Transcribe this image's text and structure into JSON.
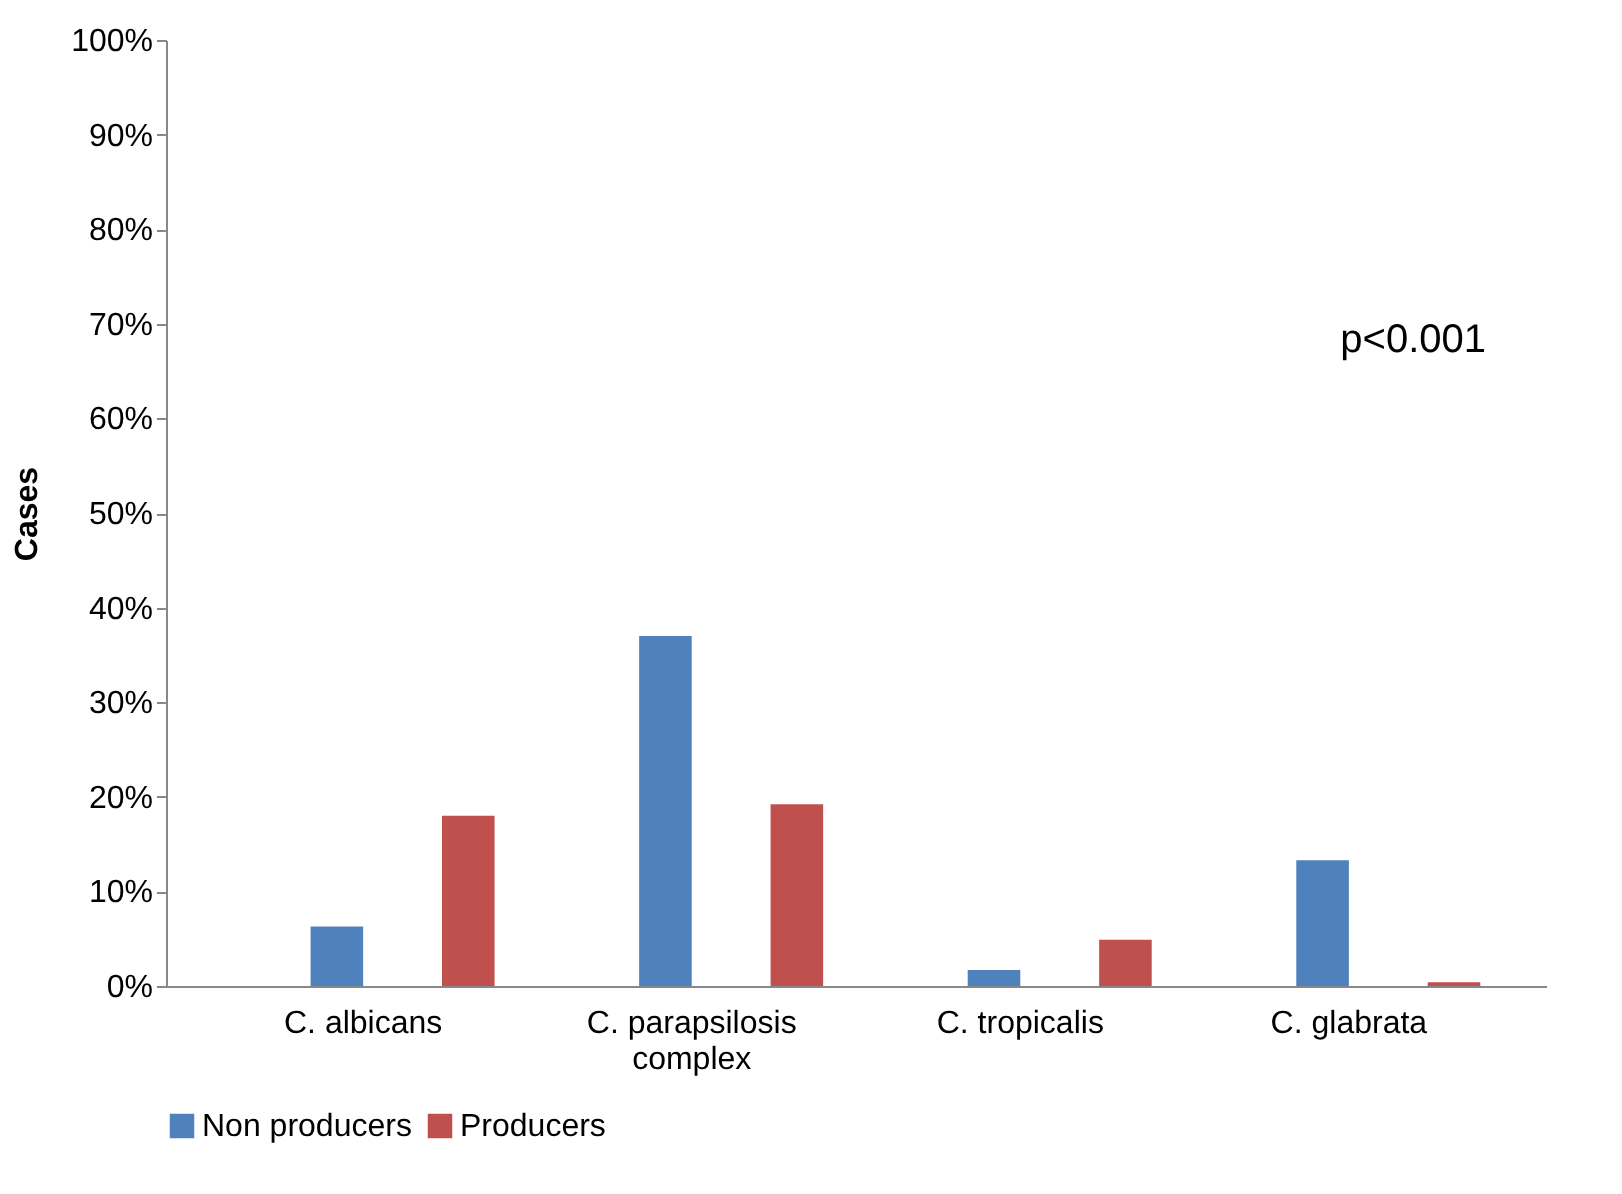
{
  "chart_data": {
    "type": "bar",
    "ylabel": "Cases",
    "categories": [
      "C. albicans",
      "C. parapsilosis complex",
      "C. tropicalis",
      "C. glabrata"
    ],
    "series": [
      {
        "name": "Non producers",
        "color": "#4f81bd",
        "values": [
          6.3,
          37,
          1.7,
          13.3
        ]
      },
      {
        "name": "Producers",
        "color": "#c0504d",
        "values": [
          18,
          19.2,
          4.9,
          0.4
        ]
      }
    ],
    "ylim": [
      0,
      100
    ],
    "yticks": [
      {
        "value": 0,
        "label": "0%"
      },
      {
        "value": 10,
        "label": "10%"
      },
      {
        "value": 20,
        "label": "20%"
      },
      {
        "value": 30,
        "label": "30%"
      },
      {
        "value": 40,
        "label": "40%"
      },
      {
        "value": 50,
        "label": "50%"
      },
      {
        "value": 60,
        "label": "60%"
      },
      {
        "value": 70,
        "label": "70%"
      },
      {
        "value": 80,
        "label": "80%"
      },
      {
        "value": 90,
        "label": "90%"
      },
      {
        "value": 100,
        "label": "100%"
      }
    ],
    "annotations": [
      "p<0.001"
    ],
    "legend": "bottom",
    "grid": false
  }
}
